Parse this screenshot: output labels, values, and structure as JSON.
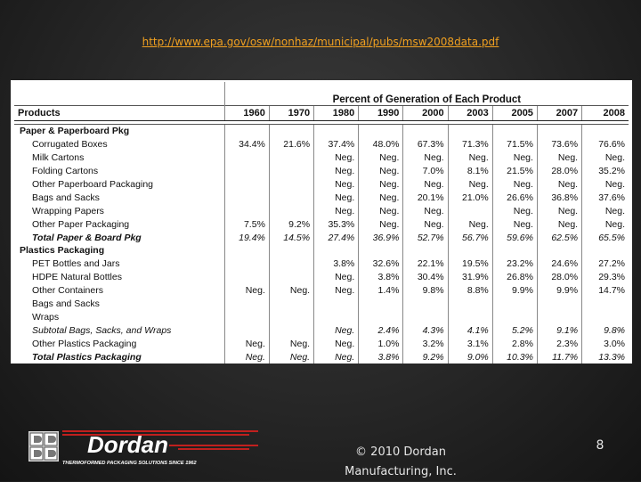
{
  "source_url": "http://www.epa.gov/osw/nonhaz/municipal/pubs/msw2008data.pdf",
  "table": {
    "group_header": "Percent of Generation of Each Product",
    "first_column_header": "Products",
    "years": [
      "1960",
      "1970",
      "1980",
      "1990",
      "2000",
      "2003",
      "2005",
      "2007",
      "2008"
    ],
    "rows": [
      {
        "label": "Paper & Paperboard Pkg",
        "style": "cat",
        "values": [
          "",
          "",
          "",
          "",
          "",
          "",
          "",
          "",
          ""
        ]
      },
      {
        "label": "Corrugated Boxes",
        "style": "sub",
        "values": [
          "34.4%",
          "21.6%",
          "37.4%",
          "48.0%",
          "67.3%",
          "71.3%",
          "71.5%",
          "73.6%",
          "76.6%"
        ]
      },
      {
        "label": "Milk Cartons",
        "style": "sub",
        "values": [
          "",
          "",
          "Neg.",
          "Neg.",
          "Neg.",
          "Neg.",
          "Neg.",
          "Neg.",
          "Neg."
        ]
      },
      {
        "label": "Folding Cartons",
        "style": "sub",
        "values": [
          "",
          "",
          "Neg.",
          "Neg.",
          "7.0%",
          "8.1%",
          "21.5%",
          "28.0%",
          "35.2%"
        ]
      },
      {
        "label": "Other Paperboard Packaging",
        "style": "sub",
        "values": [
          "",
          "",
          "Neg.",
          "Neg.",
          "Neg.",
          "Neg.",
          "Neg.",
          "Neg.",
          "Neg."
        ]
      },
      {
        "label": "Bags and Sacks",
        "style": "sub",
        "values": [
          "",
          "",
          "Neg.",
          "Neg.",
          "20.1%",
          "21.0%",
          "26.6%",
          "36.8%",
          "37.6%"
        ]
      },
      {
        "label": "Wrapping Papers",
        "style": "sub",
        "values": [
          "",
          "",
          "Neg.",
          "Neg.",
          "Neg.",
          "",
          "Neg.",
          "Neg.",
          "Neg."
        ]
      },
      {
        "label": "Other Paper Packaging",
        "style": "sub",
        "values": [
          "7.5%",
          "9.2%",
          "35.3%",
          "Neg.",
          "Neg.",
          "Neg.",
          "Neg.",
          "Neg.",
          "Neg."
        ]
      },
      {
        "label": "Total Paper & Board Pkg",
        "style": "sub total",
        "values": [
          "19.4%",
          "14.5%",
          "27.4%",
          "36.9%",
          "52.7%",
          "56.7%",
          "59.6%",
          "62.5%",
          "65.5%"
        ]
      },
      {
        "label": "Plastics Packaging",
        "style": "cat",
        "values": [
          "",
          "",
          "",
          "",
          "",
          "",
          "",
          "",
          ""
        ]
      },
      {
        "label": "PET Bottles and Jars",
        "style": "sub",
        "values": [
          "",
          "",
          "3.8%",
          "32.6%",
          "22.1%",
          "19.5%",
          "23.2%",
          "24.6%",
          "27.2%"
        ]
      },
      {
        "label": "HDPE Natural Bottles",
        "style": "sub",
        "values": [
          "",
          "",
          "Neg.",
          "3.8%",
          "30.4%",
          "31.9%",
          "26.8%",
          "28.0%",
          "29.3%"
        ]
      },
      {
        "label": "Other Containers",
        "style": "sub",
        "values": [
          "Neg.",
          "Neg.",
          "Neg.",
          "1.4%",
          "9.8%",
          "8.8%",
          "9.9%",
          "9.9%",
          "14.7%"
        ]
      },
      {
        "label": "Bags and Sacks",
        "style": "sub",
        "values": [
          "",
          "",
          "",
          "",
          "",
          "",
          "",
          "",
          ""
        ]
      },
      {
        "label": "Wraps",
        "style": "sub",
        "values": [
          "",
          "",
          "",
          "",
          "",
          "",
          "",
          "",
          ""
        ]
      },
      {
        "label": "Subtotal Bags, Sacks, and Wraps",
        "style": "sub subtotal",
        "values": [
          "",
          "",
          "Neg.",
          "2.4%",
          "4.3%",
          "4.1%",
          "5.2%",
          "9.1%",
          "9.8%"
        ]
      },
      {
        "label": "Other Plastics Packaging",
        "style": "sub",
        "values": [
          "Neg.",
          "Neg.",
          "Neg.",
          "1.0%",
          "3.2%",
          "3.1%",
          "2.8%",
          "2.3%",
          "3.0%"
        ]
      },
      {
        "label": "Total Plastics Packaging",
        "style": "sub total",
        "values": [
          "Neg.",
          "Neg.",
          "Neg.",
          "3.8%",
          "9.2%",
          "9.0%",
          "10.3%",
          "11.7%",
          "13.3%"
        ]
      }
    ]
  },
  "logo": {
    "name": "Dordan",
    "tagline": "THERMOFORMED PACKAGING SOLUTIONS SINCE 1962",
    "accent_color": "#c0201e"
  },
  "footer": {
    "copyright_line1": "© 2010 Dordan",
    "copyright_line2": "Manufacturing, Inc.",
    "page_number": "8"
  },
  "colors": {
    "url": "#f0a020",
    "footer_text": "#e6e6e6"
  }
}
